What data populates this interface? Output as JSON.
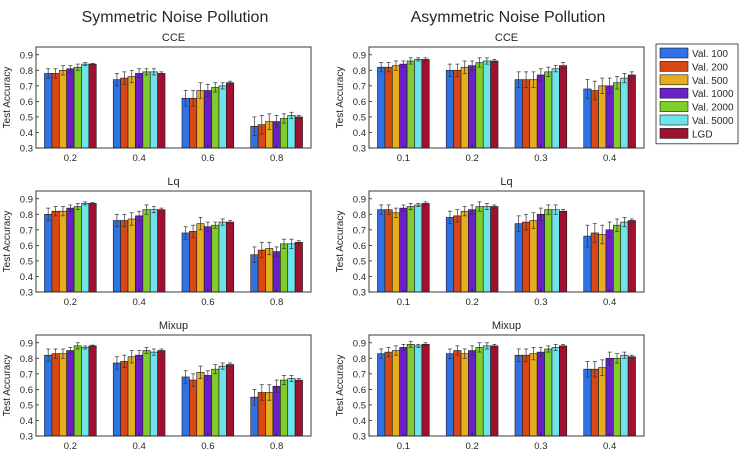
{
  "figure": {
    "column_titles": [
      "Symmetric Noise Pollution",
      "Asymmetric Noise Pollution"
    ]
  },
  "legend": {
    "entries": [
      {
        "label": "Val. 100",
        "color": "#2f72e6"
      },
      {
        "label": "Val. 200",
        "color": "#d84714"
      },
      {
        "label": "Val. 500",
        "color": "#e6ad1e"
      },
      {
        "label": "Val. 1000",
        "color": "#6a1fc8"
      },
      {
        "label": "Val. 2000",
        "color": "#7fcc2b"
      },
      {
        "label": "Val. 5000",
        "color": "#6fe3ea"
      },
      {
        "label": "LGD",
        "color": "#a1112f"
      }
    ]
  },
  "chart_data": [
    {
      "type": "bar",
      "panel": "symmetric-cce",
      "title": "CCE",
      "ylabel": "Test Accuracy",
      "ylim": [
        0.3,
        0.95
      ],
      "yticks": [
        "0.3",
        "0.4",
        "0.5",
        "0.6",
        "0.7",
        "0.8",
        "0.9"
      ],
      "categories": [
        "0.2",
        "0.4",
        "0.6",
        "0.8"
      ],
      "series": [
        {
          "name": "Val. 100",
          "values": [
            0.78,
            0.74,
            0.62,
            0.44
          ],
          "errors": [
            0.03,
            0.04,
            0.05,
            0.06
          ]
        },
        {
          "name": "Val. 200",
          "values": [
            0.78,
            0.75,
            0.62,
            0.45
          ],
          "errors": [
            0.03,
            0.04,
            0.05,
            0.06
          ]
        },
        {
          "name": "Val. 500",
          "values": [
            0.8,
            0.76,
            0.67,
            0.47
          ],
          "errors": [
            0.03,
            0.04,
            0.05,
            0.05
          ]
        },
        {
          "name": "Val. 1000",
          "values": [
            0.81,
            0.78,
            0.67,
            0.47
          ],
          "errors": [
            0.02,
            0.03,
            0.04,
            0.04
          ]
        },
        {
          "name": "Val. 2000",
          "values": [
            0.82,
            0.79,
            0.69,
            0.49
          ],
          "errors": [
            0.02,
            0.02,
            0.03,
            0.03
          ]
        },
        {
          "name": "Val. 5000",
          "values": [
            0.84,
            0.79,
            0.7,
            0.51
          ],
          "errors": [
            0.01,
            0.02,
            0.02,
            0.02
          ]
        },
        {
          "name": "LGD",
          "values": [
            0.84,
            0.78,
            0.72,
            0.5
          ],
          "errors": [
            0.005,
            0.01,
            0.01,
            0.01
          ]
        }
      ]
    },
    {
      "type": "bar",
      "panel": "asymmetric-cce",
      "title": "CCE",
      "ylabel": "Test Accuracy",
      "ylim": [
        0.3,
        0.95
      ],
      "yticks": [
        "0.3",
        "0.4",
        "0.5",
        "0.6",
        "0.7",
        "0.8",
        "0.9"
      ],
      "categories": [
        "0.1",
        "0.2",
        "0.3",
        "0.4"
      ],
      "series": [
        {
          "name": "Val. 100",
          "values": [
            0.82,
            0.8,
            0.74,
            0.68
          ],
          "errors": [
            0.03,
            0.04,
            0.05,
            0.06
          ]
        },
        {
          "name": "Val. 200",
          "values": [
            0.82,
            0.8,
            0.74,
            0.67
          ],
          "errors": [
            0.03,
            0.04,
            0.05,
            0.06
          ]
        },
        {
          "name": "Val. 500",
          "values": [
            0.83,
            0.82,
            0.74,
            0.7
          ],
          "errors": [
            0.03,
            0.04,
            0.05,
            0.05
          ]
        },
        {
          "name": "Val. 1000",
          "values": [
            0.84,
            0.83,
            0.77,
            0.7
          ],
          "errors": [
            0.02,
            0.03,
            0.04,
            0.05
          ]
        },
        {
          "name": "Val. 2000",
          "values": [
            0.86,
            0.85,
            0.79,
            0.72
          ],
          "errors": [
            0.02,
            0.03,
            0.03,
            0.04
          ]
        },
        {
          "name": "Val. 5000",
          "values": [
            0.87,
            0.86,
            0.81,
            0.75
          ],
          "errors": [
            0.01,
            0.02,
            0.02,
            0.03
          ]
        },
        {
          "name": "LGD",
          "values": [
            0.87,
            0.86,
            0.83,
            0.77
          ],
          "errors": [
            0.01,
            0.01,
            0.02,
            0.02
          ]
        }
      ]
    },
    {
      "type": "bar",
      "panel": "symmetric-lq",
      "title": "Lq",
      "ylabel": "Test Accuracy",
      "ylim": [
        0.3,
        0.95
      ],
      "yticks": [
        "0.3",
        "0.4",
        "0.5",
        "0.6",
        "0.7",
        "0.8",
        "0.9"
      ],
      "categories": [
        "0.2",
        "0.4",
        "0.6",
        "0.8"
      ],
      "series": [
        {
          "name": "Val. 100",
          "values": [
            0.8,
            0.76,
            0.68,
            0.54
          ],
          "errors": [
            0.04,
            0.04,
            0.04,
            0.05
          ]
        },
        {
          "name": "Val. 200",
          "values": [
            0.82,
            0.76,
            0.69,
            0.57
          ],
          "errors": [
            0.03,
            0.04,
            0.04,
            0.05
          ]
        },
        {
          "name": "Val. 500",
          "values": [
            0.82,
            0.77,
            0.74,
            0.58
          ],
          "errors": [
            0.03,
            0.04,
            0.04,
            0.04
          ]
        },
        {
          "name": "Val. 1000",
          "values": [
            0.84,
            0.79,
            0.72,
            0.56
          ],
          "errors": [
            0.02,
            0.03,
            0.03,
            0.03
          ]
        },
        {
          "name": "Val. 2000",
          "values": [
            0.85,
            0.83,
            0.73,
            0.61
          ],
          "errors": [
            0.02,
            0.03,
            0.02,
            0.03
          ]
        },
        {
          "name": "Val. 5000",
          "values": [
            0.87,
            0.83,
            0.75,
            0.61
          ],
          "errors": [
            0.01,
            0.02,
            0.02,
            0.03
          ]
        },
        {
          "name": "LGD",
          "values": [
            0.87,
            0.83,
            0.75,
            0.62
          ],
          "errors": [
            0.005,
            0.01,
            0.01,
            0.01
          ]
        }
      ]
    },
    {
      "type": "bar",
      "panel": "asymmetric-lq",
      "title": "Lq",
      "ylabel": "Test Accuracy",
      "ylim": [
        0.3,
        0.95
      ],
      "yticks": [
        "0.3",
        "0.4",
        "0.5",
        "0.6",
        "0.7",
        "0.8",
        "0.9"
      ],
      "categories": [
        "0.1",
        "0.2",
        "0.3",
        "0.4"
      ],
      "series": [
        {
          "name": "Val. 100",
          "values": [
            0.83,
            0.78,
            0.74,
            0.66
          ],
          "errors": [
            0.03,
            0.04,
            0.05,
            0.07
          ]
        },
        {
          "name": "Val. 200",
          "values": [
            0.83,
            0.79,
            0.75,
            0.68
          ],
          "errors": [
            0.03,
            0.04,
            0.05,
            0.06
          ]
        },
        {
          "name": "Val. 500",
          "values": [
            0.81,
            0.82,
            0.76,
            0.67
          ],
          "errors": [
            0.03,
            0.03,
            0.05,
            0.06
          ]
        },
        {
          "name": "Val. 1000",
          "values": [
            0.84,
            0.83,
            0.8,
            0.7
          ],
          "errors": [
            0.02,
            0.03,
            0.04,
            0.05
          ]
        },
        {
          "name": "Val. 2000",
          "values": [
            0.85,
            0.85,
            0.83,
            0.73
          ],
          "errors": [
            0.02,
            0.03,
            0.03,
            0.04
          ]
        },
        {
          "name": "Val. 5000",
          "values": [
            0.86,
            0.85,
            0.83,
            0.75
          ],
          "errors": [
            0.01,
            0.02,
            0.03,
            0.03
          ]
        },
        {
          "name": "LGD",
          "values": [
            0.87,
            0.85,
            0.82,
            0.76
          ],
          "errors": [
            0.01,
            0.01,
            0.01,
            0.01
          ]
        }
      ]
    },
    {
      "type": "bar",
      "panel": "symmetric-mixup",
      "title": "Mixup",
      "ylabel": "Test Accuracy",
      "ylim": [
        0.3,
        0.95
      ],
      "yticks": [
        "0.3",
        "0.4",
        "0.5",
        "0.6",
        "0.7",
        "0.8",
        "0.9"
      ],
      "categories": [
        "0.2",
        "0.4",
        "0.6",
        "0.8"
      ],
      "series": [
        {
          "name": "Val. 100",
          "values": [
            0.82,
            0.77,
            0.68,
            0.55
          ],
          "errors": [
            0.04,
            0.04,
            0.04,
            0.05
          ]
        },
        {
          "name": "Val. 200",
          "values": [
            0.83,
            0.78,
            0.66,
            0.58
          ],
          "errors": [
            0.03,
            0.04,
            0.04,
            0.05
          ]
        },
        {
          "name": "Val. 500",
          "values": [
            0.83,
            0.81,
            0.71,
            0.58
          ],
          "errors": [
            0.03,
            0.04,
            0.04,
            0.05
          ]
        },
        {
          "name": "Val. 1000",
          "values": [
            0.85,
            0.82,
            0.69,
            0.62
          ],
          "errors": [
            0.02,
            0.03,
            0.03,
            0.04
          ]
        },
        {
          "name": "Val. 2000",
          "values": [
            0.88,
            0.85,
            0.73,
            0.66
          ],
          "errors": [
            0.02,
            0.02,
            0.03,
            0.03
          ]
        },
        {
          "name": "Val. 5000",
          "values": [
            0.87,
            0.84,
            0.75,
            0.67
          ],
          "errors": [
            0.01,
            0.02,
            0.02,
            0.02
          ]
        },
        {
          "name": "LGD",
          "values": [
            0.88,
            0.85,
            0.76,
            0.66
          ],
          "errors": [
            0.005,
            0.01,
            0.01,
            0.01
          ]
        }
      ]
    },
    {
      "type": "bar",
      "panel": "asymmetric-mixup",
      "title": "Mixup",
      "ylabel": "Test Accuracy",
      "ylim": [
        0.3,
        0.95
      ],
      "yticks": [
        "0.3",
        "0.4",
        "0.5",
        "0.6",
        "0.7",
        "0.8",
        "0.9"
      ],
      "categories": [
        "0.1",
        "0.2",
        "0.3",
        "0.4"
      ],
      "series": [
        {
          "name": "Val. 100",
          "values": [
            0.83,
            0.83,
            0.82,
            0.73
          ],
          "errors": [
            0.03,
            0.03,
            0.04,
            0.05
          ]
        },
        {
          "name": "Val. 200",
          "values": [
            0.84,
            0.85,
            0.82,
            0.73
          ],
          "errors": [
            0.03,
            0.03,
            0.04,
            0.05
          ]
        },
        {
          "name": "Val. 500",
          "values": [
            0.85,
            0.83,
            0.83,
            0.74
          ],
          "errors": [
            0.03,
            0.03,
            0.04,
            0.05
          ]
        },
        {
          "name": "Val. 1000",
          "values": [
            0.87,
            0.85,
            0.84,
            0.8
          ],
          "errors": [
            0.02,
            0.03,
            0.03,
            0.04
          ]
        },
        {
          "name": "Val. 2000",
          "values": [
            0.89,
            0.87,
            0.86,
            0.8
          ],
          "errors": [
            0.02,
            0.03,
            0.02,
            0.03
          ]
        },
        {
          "name": "Val. 5000",
          "values": [
            0.88,
            0.88,
            0.87,
            0.82
          ],
          "errors": [
            0.01,
            0.02,
            0.02,
            0.02
          ]
        },
        {
          "name": "LGD",
          "values": [
            0.89,
            0.88,
            0.88,
            0.81
          ],
          "errors": [
            0.01,
            0.01,
            0.01,
            0.01
          ]
        }
      ]
    }
  ]
}
